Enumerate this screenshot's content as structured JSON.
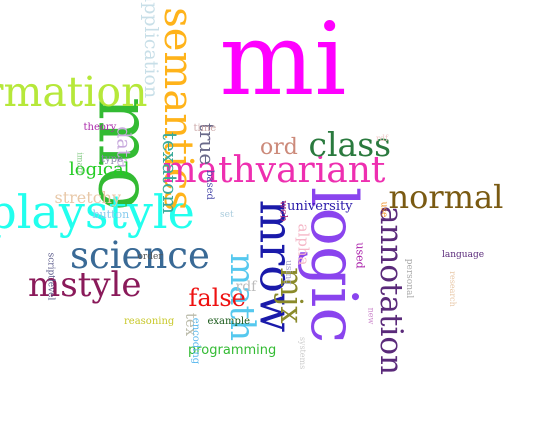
{
  "words": [
    {
      "id": "mi",
      "text": "mi",
      "color": "#ff00ff"
    },
    {
      "id": "mo",
      "text": "mo",
      "color": "#33bb33"
    },
    {
      "id": "information",
      "text": "information",
      "color": "#b6e83a"
    },
    {
      "id": "displaystyle",
      "text": "displaystyle",
      "color": "#22ffee"
    },
    {
      "id": "semantics",
      "text": "semantics",
      "color": "#ffb31a"
    },
    {
      "id": "mathvariant",
      "text": "mathvariant",
      "color": "#ee2fb0"
    },
    {
      "id": "class",
      "text": "class",
      "color": "#2a7a3e"
    },
    {
      "id": "normal",
      "text": "normal",
      "color": "#7a5a12"
    },
    {
      "id": "logic",
      "text": "logic",
      "color": "#8a44ee"
    },
    {
      "id": "mrow",
      "text": "mrow",
      "color": "#1a1aaa"
    },
    {
      "id": "annotation",
      "text": "annotation",
      "color": "#5a2a7a"
    },
    {
      "id": "science",
      "text": "science",
      "color": "#3a6a96"
    },
    {
      "id": "mstyle",
      "text": "mstyle",
      "color": "#8a1a5a"
    },
    {
      "id": "math",
      "text": "math",
      "color": "#55c8ee"
    },
    {
      "id": "mjx",
      "text": "mjx",
      "color": "#8a8a2a"
    },
    {
      "id": "false",
      "text": "false",
      "color": "#ee1111"
    },
    {
      "id": "texatom",
      "text": "texatom",
      "color": "#3aaa9a"
    },
    {
      "id": "true",
      "text": "true",
      "color": "#6a6a8a"
    },
    {
      "id": "ord",
      "text": "ord",
      "color": "#cc8a7a"
    },
    {
      "id": "application",
      "text": "application",
      "color": "#c8dfe8"
    },
    {
      "id": "data",
      "text": "data",
      "color": "#c8aadd"
    },
    {
      "id": "logical",
      "text": "logical",
      "color": "#22cc22"
    },
    {
      "id": "stretchy",
      "text": "stretchy",
      "color": "#e8c8a8"
    },
    {
      "id": "programming",
      "text": "programming",
      "color": "#33bb33"
    },
    {
      "id": "university",
      "text": "university",
      "color": "#2a1aaa"
    },
    {
      "id": "alpha",
      "text": "alpha",
      "color": "#f5b8c8"
    },
    {
      "id": "rdf_small",
      "text": "rdf",
      "color": "#bbbbbb"
    },
    {
      "id": "tex",
      "text": "tex",
      "color": "#bbbbaa"
    },
    {
      "id": "theory",
      "text": "theory",
      "color": "#aa2aaa"
    },
    {
      "id": "time",
      "text": "time",
      "color": "#ccaaaa"
    },
    {
      "id": "type",
      "text": "type",
      "color": "#8a8aaa"
    },
    {
      "id": "button",
      "text": "button",
      "color": "#88ccee"
    },
    {
      "id": "order",
      "text": "order",
      "color": "#555555"
    },
    {
      "id": "reasoning",
      "text": "reasoning",
      "color": "#c8c82a"
    },
    {
      "id": "example",
      "text": "example",
      "color": "#1a5a1a"
    },
    {
      "id": "encoding",
      "text": "encoding",
      "color": "#5ab8ee"
    },
    {
      "id": "based",
      "text": "based",
      "color": "#4a4aaa"
    },
    {
      "id": "set",
      "text": "set",
      "color": "#aaccdd"
    },
    {
      "id": "web",
      "text": "web",
      "color": "#aa2a7a"
    },
    {
      "id": "using",
      "text": "using",
      "color": "#aaaacc"
    },
    {
      "id": "use",
      "text": "use",
      "color": "#ee8a1a"
    },
    {
      "id": "used",
      "text": "used",
      "color": "#aa22aa"
    },
    {
      "id": "personal",
      "text": "personal",
      "color": "#aaaaaa"
    },
    {
      "id": "research",
      "text": "research",
      "color": "#e8c8a8"
    },
    {
      "id": "language",
      "text": "language",
      "color": "#5a2a7a"
    },
    {
      "id": "new",
      "text": "new",
      "color": "#cc88cc"
    },
    {
      "id": "systems",
      "text": "systems",
      "color": "#cccccc"
    },
    {
      "id": "imath",
      "text": "imath",
      "color": "#88cc88"
    },
    {
      "id": "scriptlevel",
      "text": "scriptlevel",
      "color": "#5a5a8a"
    },
    {
      "id": "rdf_top",
      "text": "rdf",
      "color": "#eec8c8"
    }
  ]
}
